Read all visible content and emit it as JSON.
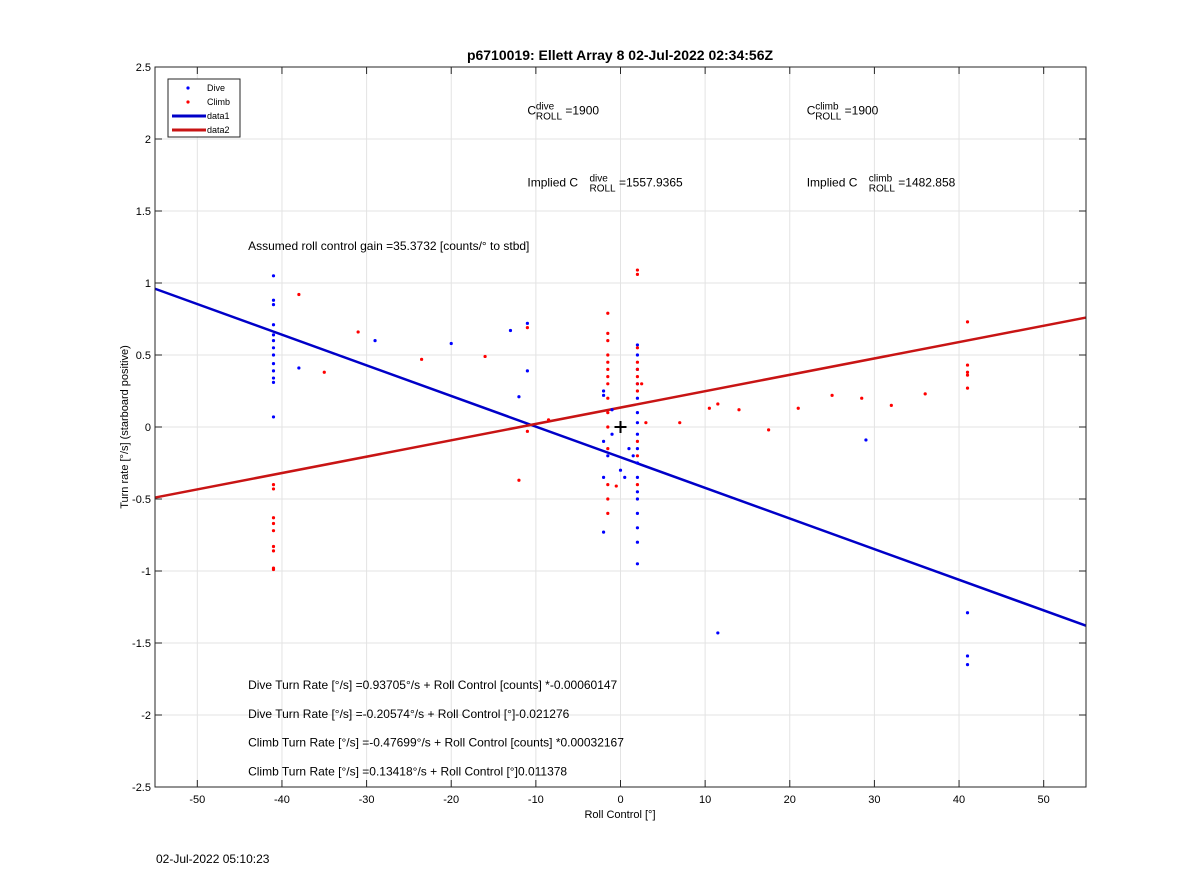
{
  "chart_data": {
    "type": "scatter",
    "title": "p6710019: Ellett Array 8 02-Jul-2022 02:34:56Z",
    "xlabel": "Roll Control [°]",
    "ylabel": "Turn rate [°/s] (starboard positive)",
    "xlim": [
      -55,
      55
    ],
    "ylim": [
      -2.5,
      2.5
    ],
    "xticks": [
      -50,
      -40,
      -30,
      -20,
      -10,
      0,
      10,
      20,
      30,
      40,
      50
    ],
    "xtick_labels": [
      "-50",
      "-40",
      "-30",
      "-20",
      "-10",
      "0",
      "10",
      "20",
      "30",
      "40",
      "50"
    ],
    "yticks": [
      -2.5,
      -2,
      -1.5,
      -1,
      -0.5,
      0,
      0.5,
      1,
      1.5,
      2,
      2.5
    ],
    "ytick_labels": [
      "-2.5",
      "-2",
      "-1.5",
      "-1",
      "-0.5",
      "0",
      "0.5",
      "1",
      "1.5",
      "2",
      "2.5"
    ],
    "grid": true,
    "legend_position": "top-left",
    "legend": [
      {
        "label": "Dive",
        "kind": "marker",
        "color": "#0000ff"
      },
      {
        "label": "Climb",
        "kind": "marker",
        "color": "#ff0000"
      },
      {
        "label": "data1",
        "kind": "line",
        "color": "#0000c8"
      },
      {
        "label": "data2",
        "kind": "line",
        "color": "#c81414"
      }
    ],
    "series": [
      {
        "name": "Dive",
        "color": "#0000ff",
        "points": [
          [
            -41,
            1.05
          ],
          [
            -41,
            0.88
          ],
          [
            -41,
            0.85
          ],
          [
            -41,
            0.71
          ],
          [
            -41,
            0.64
          ],
          [
            -41,
            0.6
          ],
          [
            -41,
            0.55
          ],
          [
            -41,
            0.5
          ],
          [
            -41,
            0.44
          ],
          [
            -41,
            0.39
          ],
          [
            -41,
            0.34
          ],
          [
            -41,
            0.31
          ],
          [
            -41,
            0.07
          ],
          [
            -38,
            0.41
          ],
          [
            -29,
            0.6
          ],
          [
            -20,
            0.58
          ],
          [
            -13,
            0.67
          ],
          [
            -11,
            0.72
          ],
          [
            -11,
            0.39
          ],
          [
            -12,
            0.21
          ],
          [
            -2,
            0.25
          ],
          [
            -2,
            0.22
          ],
          [
            -2,
            -0.1
          ],
          [
            -2,
            -0.35
          ],
          [
            -2,
            -0.73
          ],
          [
            -1.5,
            -0.2
          ],
          [
            -1,
            0.12
          ],
          [
            -1,
            -0.05
          ],
          [
            0,
            -0.3
          ],
          [
            0.5,
            -0.35
          ],
          [
            1,
            -0.15
          ],
          [
            1.5,
            -0.2
          ],
          [
            2,
            0.57
          ],
          [
            2,
            0.5
          ],
          [
            2,
            0.4
          ],
          [
            2,
            0.3
          ],
          [
            2,
            0.2
          ],
          [
            2,
            0.1
          ],
          [
            2,
            0.03
          ],
          [
            2,
            -0.05
          ],
          [
            2,
            -0.15
          ],
          [
            2,
            -0.25
          ],
          [
            2,
            -0.35
          ],
          [
            2,
            -0.45
          ],
          [
            2,
            -0.5
          ],
          [
            2,
            -0.6
          ],
          [
            2,
            -0.7
          ],
          [
            2,
            -0.8
          ],
          [
            2,
            -0.95
          ],
          [
            11.5,
            -1.43
          ],
          [
            29,
            -0.09
          ],
          [
            41,
            -1.29
          ],
          [
            41,
            -1.59
          ],
          [
            41,
            -1.65
          ]
        ]
      },
      {
        "name": "Climb",
        "color": "#ff0000",
        "points": [
          [
            -41,
            -0.4
          ],
          [
            -41,
            -0.43
          ],
          [
            -41,
            -0.63
          ],
          [
            -41,
            -0.67
          ],
          [
            -41,
            -0.72
          ],
          [
            -41,
            -0.83
          ],
          [
            -41,
            -0.86
          ],
          [
            -41,
            -0.98
          ],
          [
            -41,
            -0.99
          ],
          [
            -38,
            0.92
          ],
          [
            -35,
            0.38
          ],
          [
            -31,
            0.66
          ],
          [
            -23.5,
            0.47
          ],
          [
            -16,
            0.49
          ],
          [
            -11,
            0.69
          ],
          [
            -11,
            -0.03
          ],
          [
            -12,
            -0.37
          ],
          [
            -8.5,
            0.05
          ],
          [
            -1.5,
            0.79
          ],
          [
            -1.5,
            0.65
          ],
          [
            -1.5,
            0.6
          ],
          [
            -1.5,
            0.5
          ],
          [
            -1.5,
            0.45
          ],
          [
            -1.5,
            0.4
          ],
          [
            -1.5,
            0.35
          ],
          [
            -1.5,
            0.3
          ],
          [
            -1.5,
            0.2
          ],
          [
            -1.5,
            0.1
          ],
          [
            -1.5,
            0.0
          ],
          [
            -1.5,
            -0.15
          ],
          [
            -1.5,
            -0.4
          ],
          [
            -1.5,
            -0.5
          ],
          [
            -1.5,
            -0.6
          ],
          [
            -0.5,
            -0.41
          ],
          [
            2,
            1.09
          ],
          [
            2,
            1.06
          ],
          [
            2,
            0.55
          ],
          [
            2,
            0.45
          ],
          [
            2,
            0.4
          ],
          [
            2,
            0.35
          ],
          [
            2,
            0.3
          ],
          [
            2,
            0.25
          ],
          [
            2,
            -0.1
          ],
          [
            2,
            -0.2
          ],
          [
            2,
            -0.4
          ],
          [
            2.5,
            0.3
          ],
          [
            3,
            0.03
          ],
          [
            7,
            0.03
          ],
          [
            10.5,
            0.13
          ],
          [
            11.5,
            0.16
          ],
          [
            14,
            0.12
          ],
          [
            17.5,
            -0.02
          ],
          [
            21,
            0.13
          ],
          [
            25,
            0.22
          ],
          [
            28.5,
            0.2
          ],
          [
            32,
            0.15
          ],
          [
            36,
            0.23
          ],
          [
            41,
            0.73
          ],
          [
            41,
            0.43
          ],
          [
            41,
            0.38
          ],
          [
            41,
            0.36
          ],
          [
            41,
            0.27
          ]
        ]
      }
    ],
    "lines": [
      {
        "name": "data1",
        "color": "#0000c8",
        "x": [
          -55,
          55
        ],
        "y": [
          0.96,
          -1.38
        ]
      },
      {
        "name": "data2",
        "color": "#c81414",
        "x": [
          -55,
          55
        ],
        "y": [
          -0.49,
          0.76
        ]
      }
    ],
    "marker": {
      "x": 0,
      "y": 0,
      "symbol": "+"
    },
    "annotations": {
      "c_dive": {
        "x": -11,
        "y": 2.17,
        "pre": "",
        "base": "C",
        "sup": "dive",
        "sub": "ROLL",
        "post": " =1900"
      },
      "c_climb": {
        "x": 22,
        "y": 2.17,
        "pre": "",
        "base": "C",
        "sup": "climb",
        "sub": "ROLL",
        "post": " =1900"
      },
      "implied_dive": {
        "x": -11,
        "y": 1.67,
        "pre": "Implied ",
        "base": "C",
        "sup": "dive",
        "sub": "ROLL",
        "post": " =1557.9365"
      },
      "implied_climb": {
        "x": 22,
        "y": 1.67,
        "pre": "Implied ",
        "base": "C",
        "sup": "climb",
        "sub": "ROLL",
        "post": " =1482.858"
      },
      "gain": {
        "x": -44,
        "y": 1.23,
        "text": "Assumed roll control gain =35.3732 [counts/° to stbd]"
      },
      "eq1": {
        "x": -44,
        "y": -1.82,
        "text": "Dive Turn Rate [°/s] =0.93705°/s + Roll Control [counts] *-0.00060147"
      },
      "eq2": {
        "x": -44,
        "y": -2.02,
        "text": "Dive Turn Rate [°/s] =-0.20574°/s + Roll Control [°]-0.021276"
      },
      "eq3": {
        "x": -44,
        "y": -2.22,
        "text": "Climb Turn Rate [°/s] =-0.47699°/s + Roll Control [counts] *0.00032167"
      },
      "eq4": {
        "x": -44,
        "y": -2.42,
        "text": "Climb Turn Rate [°/s] =0.13418°/s + Roll Control [°]0.011378"
      }
    }
  },
  "footer": {
    "timestamp": "02-Jul-2022 05:10:23"
  }
}
